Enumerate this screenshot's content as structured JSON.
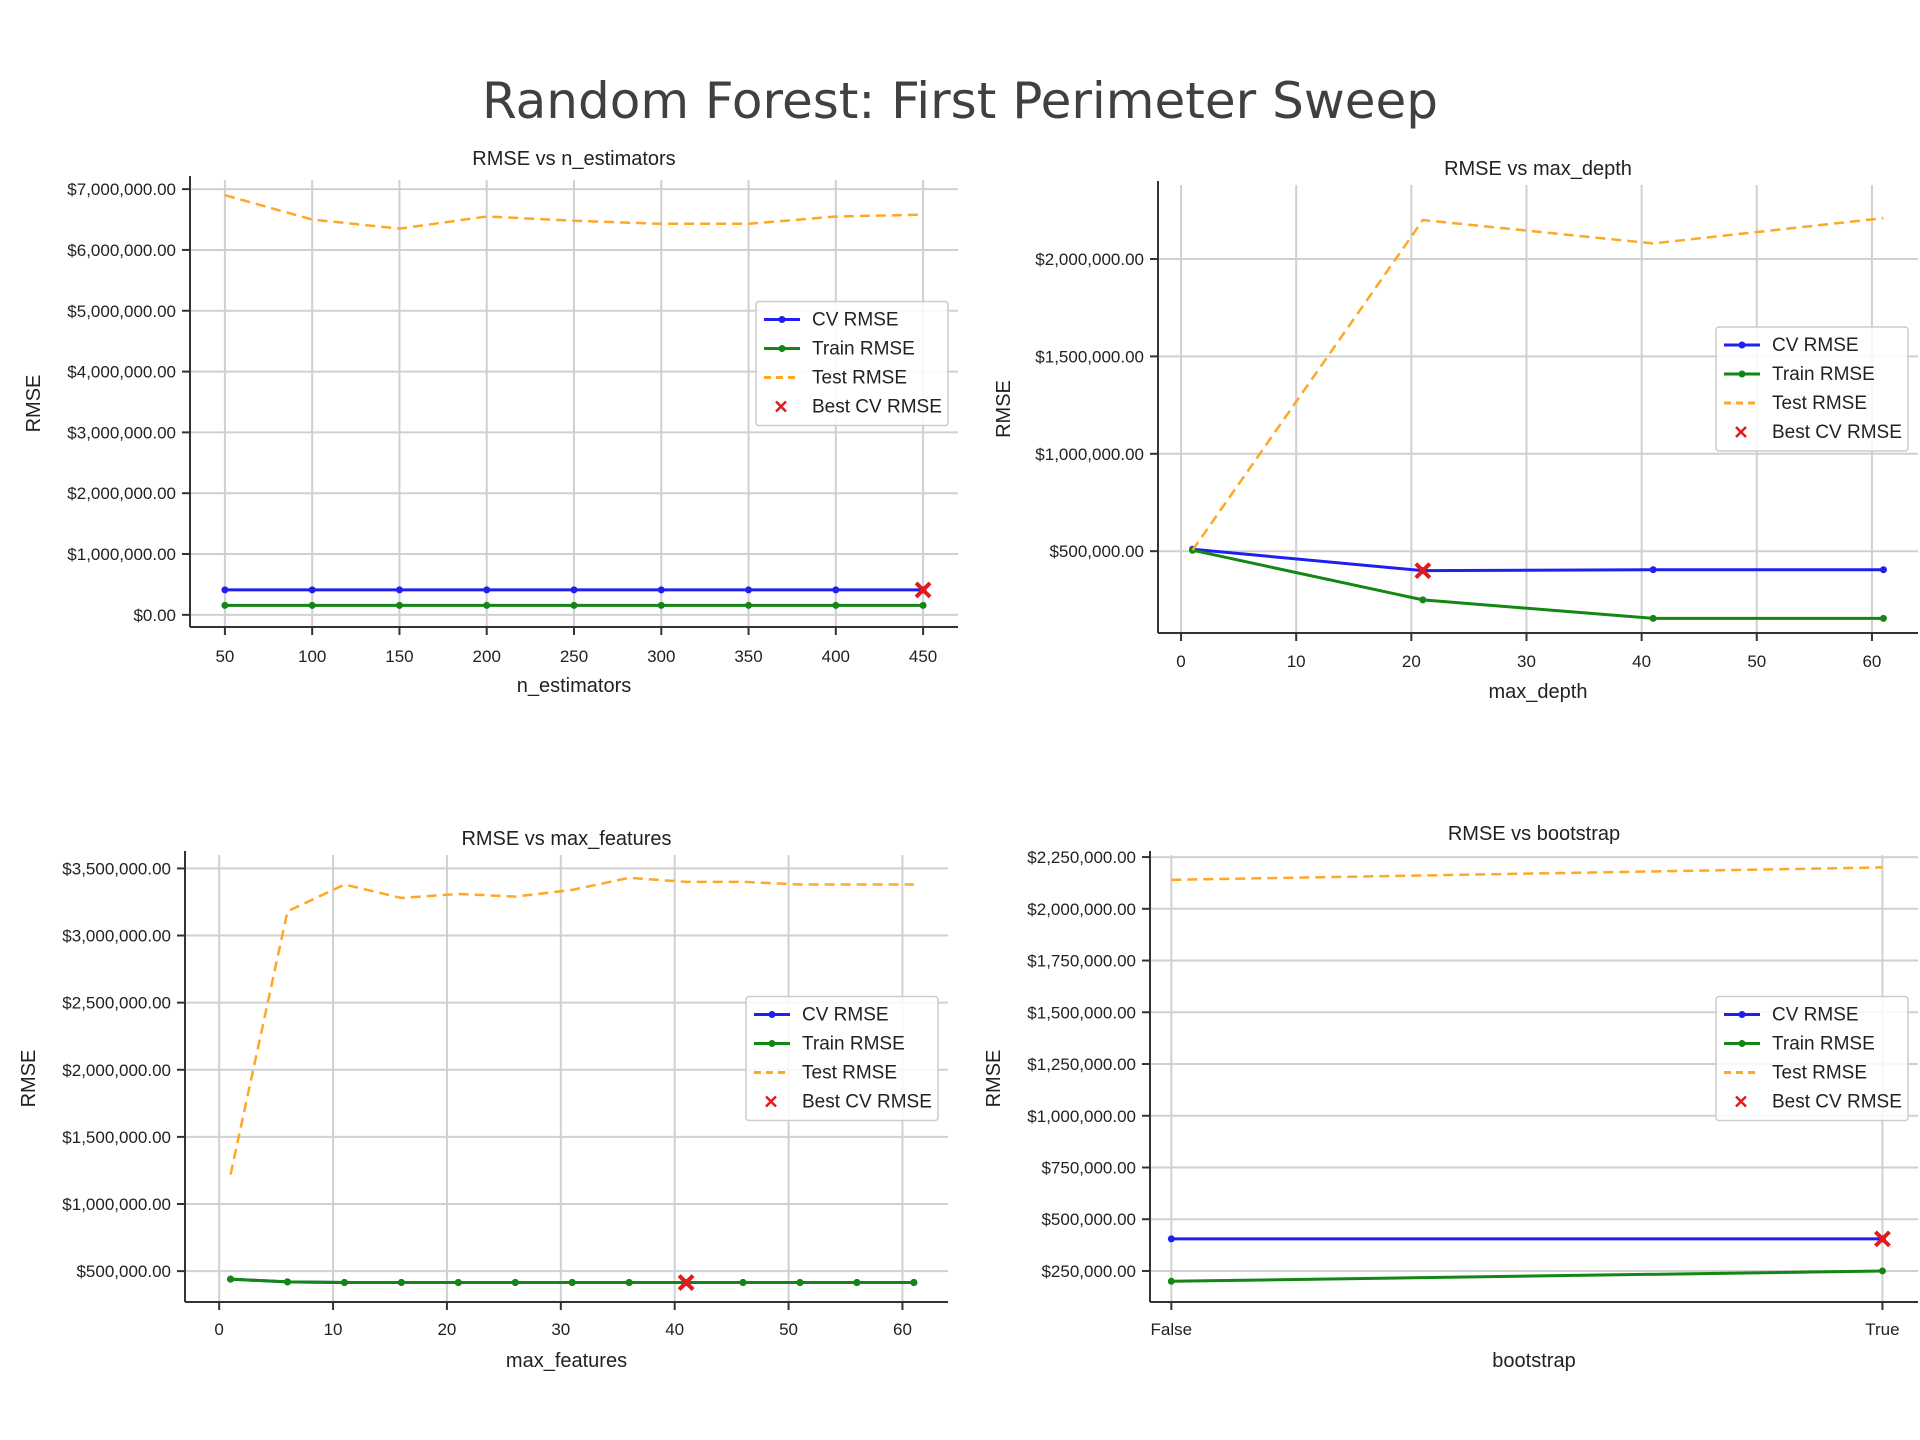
{
  "page_title": "Random Forest: First Perimeter Sweep",
  "colors": {
    "cv": "#1f1ff0",
    "train": "#138613",
    "test": "#ffa726",
    "best": "#e31a1c",
    "grid": "#d0d0d0"
  },
  "chart_data": [
    {
      "type": "line",
      "title": "RMSE vs n_estimators",
      "xlabel": "n_estimators",
      "ylabel": "RMSE",
      "xlim": [
        30,
        470
      ],
      "ylim": [
        -200000,
        7150000
      ],
      "xticks": [
        50,
        100,
        150,
        200,
        250,
        300,
        350,
        400,
        450
      ],
      "xtick_labels": [
        "50",
        "100",
        "150",
        "200",
        "250",
        "300",
        "350",
        "400",
        "450"
      ],
      "yticks": [
        0,
        1000000,
        2000000,
        3000000,
        4000000,
        5000000,
        6000000,
        7000000
      ],
      "ytick_labels": [
        "$0.00",
        "$1,000,000.00",
        "$2,000,000.00",
        "$3,000,000.00",
        "$4,000,000.00",
        "$5,000,000.00",
        "$6,000,000.00",
        "$7,000,000.00"
      ],
      "x": [
        50,
        100,
        150,
        200,
        250,
        300,
        350,
        400,
        450
      ],
      "series": [
        {
          "name": "CV RMSE",
          "values": [
            410000,
            410000,
            410000,
            410000,
            410000,
            410000,
            410000,
            410000,
            410000
          ]
        },
        {
          "name": "Train RMSE",
          "values": [
            155000,
            155000,
            155000,
            155000,
            155000,
            155000,
            155000,
            155000,
            155000
          ]
        },
        {
          "name": "Test RMSE",
          "values": [
            6900000,
            6500000,
            6350000,
            6550000,
            6480000,
            6430000,
            6430000,
            6550000,
            6580000
          ]
        }
      ],
      "best": {
        "name": "Best CV RMSE",
        "x": 450,
        "y": 410000
      },
      "legend": "center-right",
      "grid": true
    },
    {
      "type": "line",
      "title": "RMSE vs max_depth",
      "xlabel": "max_depth",
      "ylabel": "RMSE",
      "xlim": [
        -2,
        64
      ],
      "ylim": [
        80000,
        2380000
      ],
      "xticks": [
        0,
        10,
        20,
        30,
        40,
        50,
        60
      ],
      "xtick_labels": [
        "0",
        "10",
        "20",
        "30",
        "40",
        "50",
        "60"
      ],
      "yticks": [
        500000,
        1000000,
        1500000,
        2000000
      ],
      "ytick_labels": [
        "$500,000.00",
        "$1,000,000.00",
        "$1,500,000.00",
        "$2,000,000.00"
      ],
      "x": [
        1,
        21,
        41,
        61
      ],
      "series": [
        {
          "name": "CV RMSE",
          "values": [
            510000,
            400000,
            405000,
            405000
          ]
        },
        {
          "name": "Train RMSE",
          "values": [
            505000,
            250000,
            155000,
            155000
          ]
        },
        {
          "name": "Test RMSE",
          "values": [
            505000,
            2200000,
            2080000,
            2210000
          ]
        }
      ],
      "best": {
        "name": "Best CV RMSE",
        "x": 21,
        "y": 400000
      },
      "legend": "center-right",
      "grid": true
    },
    {
      "type": "line",
      "title": "RMSE vs max_features",
      "xlabel": "max_features",
      "ylabel": "RMSE",
      "xlim": [
        -3,
        64
      ],
      "ylim": [
        270000,
        3600000
      ],
      "xticks": [
        0,
        10,
        20,
        30,
        40,
        50,
        60
      ],
      "xtick_labels": [
        "0",
        "10",
        "20",
        "30",
        "40",
        "50",
        "60"
      ],
      "yticks": [
        500000,
        1000000,
        1500000,
        2000000,
        2500000,
        3000000,
        3500000
      ],
      "ytick_labels": [
        "$500,000.00",
        "$1,000,000.00",
        "$1,500,000.00",
        "$2,000,000.00",
        "$2,500,000.00",
        "$3,000,000.00",
        "$3,500,000.00"
      ],
      "x": [
        1,
        6,
        11,
        16,
        21,
        26,
        31,
        36,
        41,
        46,
        51,
        56,
        61
      ],
      "series": [
        {
          "name": "CV RMSE",
          "values": [
            440000,
            420000,
            415000,
            415000,
            415000,
            415000,
            415000,
            415000,
            415000,
            415000,
            415000,
            415000,
            415000
          ]
        },
        {
          "name": "Train RMSE",
          "values": [
            440000,
            420000,
            415000,
            415000,
            415000,
            415000,
            415000,
            415000,
            415000,
            415000,
            415000,
            415000,
            415000
          ]
        },
        {
          "name": "Test RMSE",
          "values": [
            1220000,
            3180000,
            3380000,
            3280000,
            3310000,
            3290000,
            3340000,
            3430000,
            3400000,
            3400000,
            3380000,
            3380000,
            3380000
          ]
        }
      ],
      "best": {
        "name": "Best CV RMSE",
        "x": 41,
        "y": 415000
      },
      "legend": "center-right",
      "grid": true
    },
    {
      "type": "line",
      "title": "RMSE vs bootstrap",
      "xlabel": "bootstrap",
      "ylabel": "RMSE",
      "xlim": [
        -0.03,
        1.05
      ],
      "ylim": [
        100000,
        2260000
      ],
      "xticks": [
        0,
        1
      ],
      "xtick_labels": [
        "False",
        "True"
      ],
      "yticks": [
        250000,
        500000,
        750000,
        1000000,
        1250000,
        1500000,
        1750000,
        2000000,
        2250000
      ],
      "ytick_labels": [
        "$250,000.00",
        "$500,000.00",
        "$750,000.00",
        "$1,000,000.00",
        "$1,250,000.00",
        "$1,500,000.00",
        "$1,750,000.00",
        "$2,000,000.00",
        "$2,250,000.00"
      ],
      "x": [
        0,
        1
      ],
      "series": [
        {
          "name": "CV RMSE",
          "values": [
            405000,
            405000
          ]
        },
        {
          "name": "Train RMSE",
          "values": [
            200000,
            250000
          ]
        },
        {
          "name": "Test RMSE",
          "values": [
            2140000,
            2200000
          ]
        }
      ],
      "best": {
        "name": "Best CV RMSE",
        "x": 1,
        "y": 405000
      },
      "legend": "center-right",
      "grid": true
    }
  ]
}
